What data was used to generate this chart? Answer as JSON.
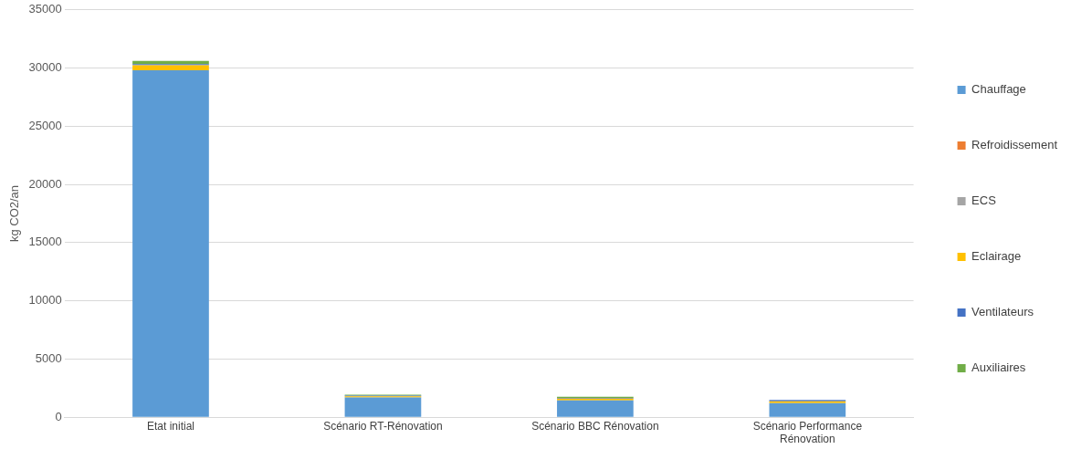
{
  "chart_data": {
    "type": "bar",
    "stacked": true,
    "ylabel": "kg CO2/an",
    "categories": [
      "Etat initial",
      "Scénario RT-Rénovation",
      "Scénario BBC Rénovation",
      "Scénario Performance Rénovation"
    ],
    "series": [
      {
        "name": "Chauffage",
        "color": "#5b9bd5",
        "values": [
          29800,
          1700,
          1450,
          1220
        ]
      },
      {
        "name": "Refroidissement",
        "color": "#ed7d31",
        "values": [
          0,
          0,
          0,
          0
        ]
      },
      {
        "name": "ECS",
        "color": "#a5a5a5",
        "values": [
          null,
          null,
          null,
          null
        ]
      },
      {
        "name": "Eclairage",
        "color": "#ffc000",
        "values": [
          440,
          100,
          150,
          150
        ]
      },
      {
        "name": "Ventilateurs",
        "color": "#4472c4",
        "values": [
          100,
          60,
          60,
          120
        ]
      },
      {
        "name": "Auxiliaires",
        "color": "#70ad47",
        "values": [
          280,
          80,
          100,
          null
        ]
      }
    ],
    "ylim": [
      0,
      35000
    ],
    "yticks": [
      0,
      5000,
      10000,
      15000,
      20000,
      25000,
      30000,
      35000
    ],
    "grid": "y",
    "legend": "right"
  }
}
